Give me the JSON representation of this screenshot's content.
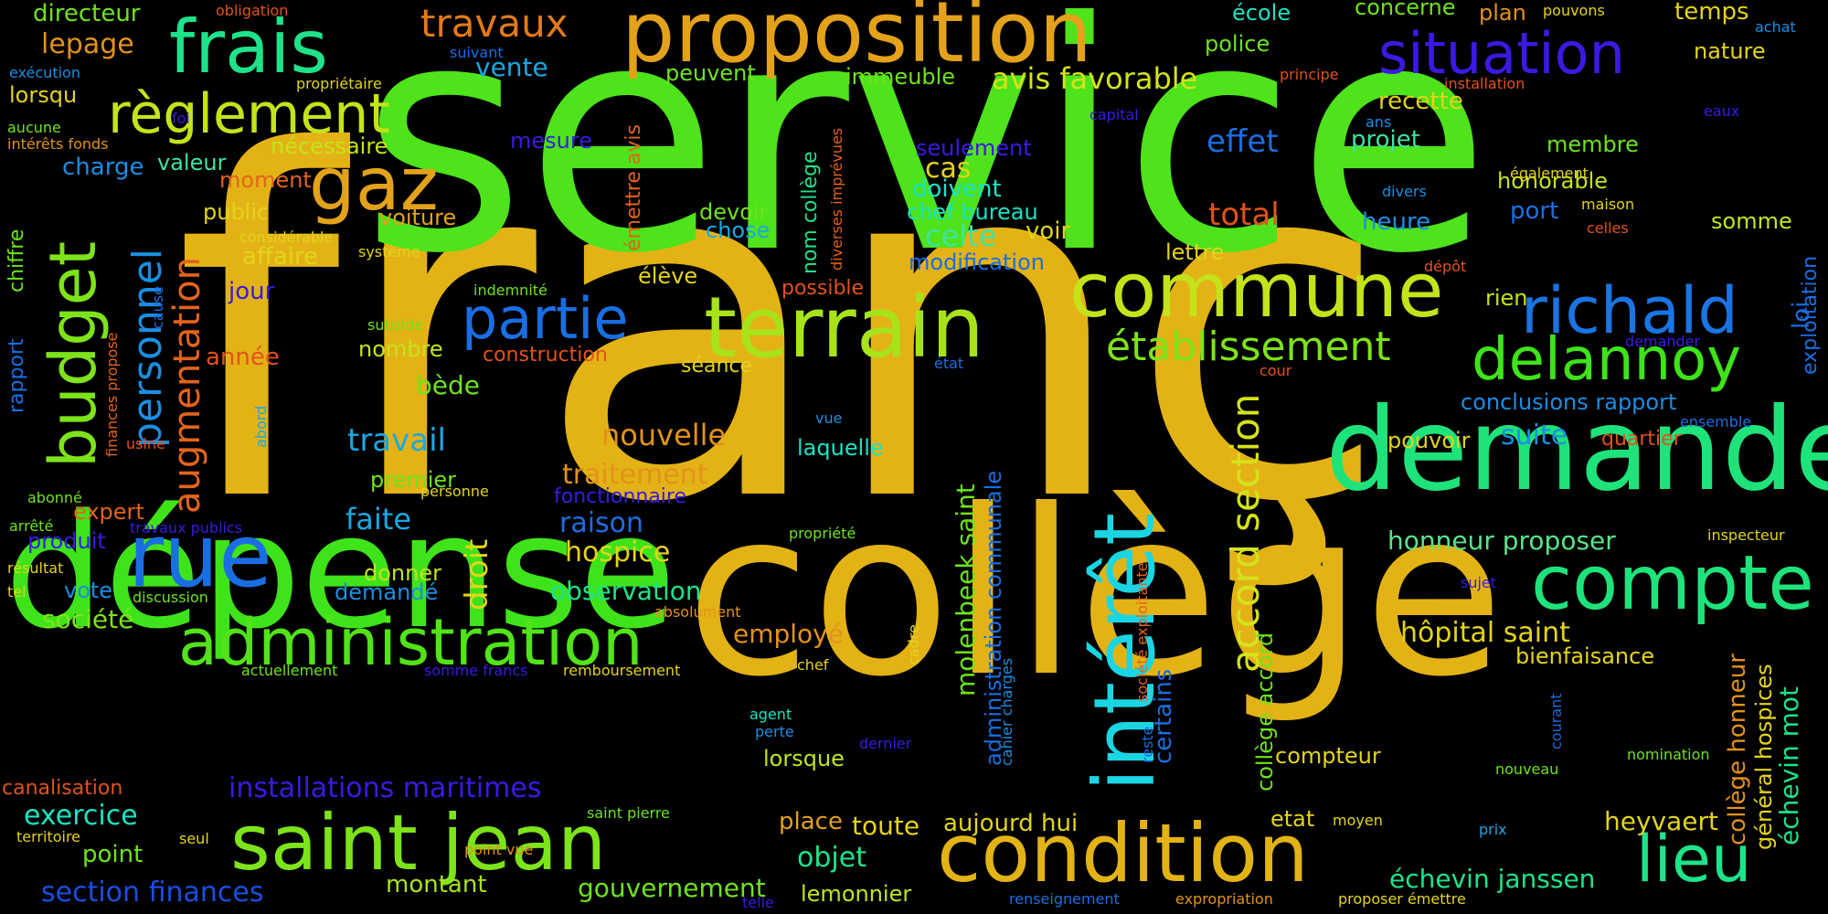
{
  "words": [
    {
      "text": "franç",
      "color": "#e3b316"
    },
    {
      "text": "service",
      "color": "#4ee31a"
    },
    {
      "text": "collège",
      "color": "#e3b316"
    },
    {
      "text": "dépense",
      "color": "#3fe31a"
    },
    {
      "text": "demande",
      "color": "#1ee37a"
    },
    {
      "text": "proposition",
      "color": "#e3a21a"
    },
    {
      "text": "commune",
      "color": "#c4e31a"
    },
    {
      "text": "terrain",
      "color": "#a8e31a"
    },
    {
      "text": "condition",
      "color": "#e3b316"
    },
    {
      "text": "compte",
      "color": "#1ee37a"
    },
    {
      "text": "saint jean",
      "color": "#7de31a"
    },
    {
      "text": "administration",
      "color": "#52e31a"
    },
    {
      "text": "intérêt",
      "color": "#1ad6e3"
    },
    {
      "text": "rue",
      "color": "#1a6ee3"
    },
    {
      "text": "frais",
      "color": "#1ee38a"
    },
    {
      "text": "situation",
      "color": "#3a1ae3"
    },
    {
      "text": "richald",
      "color": "#1a74e3"
    },
    {
      "text": "delannoy",
      "color": "#3fe31a"
    },
    {
      "text": "budget",
      "color": "#7de31a"
    },
    {
      "text": "règlement",
      "color": "#c4e31a"
    },
    {
      "text": "gaz",
      "color": "#e3a21a"
    },
    {
      "text": "partie",
      "color": "#1a6ee3"
    },
    {
      "text": "lieu",
      "color": "#1ee38a"
    },
    {
      "text": "établissement",
      "color": "#7de31a"
    },
    {
      "text": "personnel",
      "color": "#1a8ee3"
    },
    {
      "text": "augmentation",
      "color": "#e3641a"
    },
    {
      "text": "travaux",
      "color": "#e3791a"
    },
    {
      "text": "accord section",
      "color": "#d4e31a"
    },
    {
      "text": "installations maritimes",
      "color": "#3a1ae3"
    },
    {
      "text": "avis favorable",
      "color": "#d4e31a"
    },
    {
      "text": "hôpital saint",
      "color": "#e3d41a"
    },
    {
      "text": "honneur proposer",
      "color": "#5ae38a"
    },
    {
      "text": "section finances",
      "color": "#1a4ee3"
    },
    {
      "text": "gouvernement",
      "color": "#6ee31a"
    },
    {
      "text": "échevin janssen",
      "color": "#1ee38a"
    },
    {
      "text": "traitement",
      "color": "#e3921a"
    },
    {
      "text": "nouvelle",
      "color": "#e3921a"
    },
    {
      "text": "travail",
      "color": "#1aa8e3"
    },
    {
      "text": "hospice",
      "color": "#e3d41a"
    },
    {
      "text": "raison",
      "color": "#1a6ee3"
    },
    {
      "text": "observation",
      "color": "#1ee38a"
    },
    {
      "text": "employé",
      "color": "#e3921a"
    },
    {
      "text": "objet",
      "color": "#1ee38a"
    },
    {
      "text": "heyvaert",
      "color": "#e3d41a"
    },
    {
      "text": "exercice",
      "color": "#1ae3c4"
    },
    {
      "text": "point",
      "color": "#6ee31a"
    },
    {
      "text": "montant",
      "color": "#a8e31a"
    },
    {
      "text": "lemonnier",
      "color": "#c4e31a"
    },
    {
      "text": "toute",
      "color": "#e3d41a"
    },
    {
      "text": "aujourd hui",
      "color": "#e3d41a"
    },
    {
      "text": "place",
      "color": "#e3a21a"
    },
    {
      "text": "lorsque",
      "color": "#c4e31a"
    },
    {
      "text": "compteur",
      "color": "#e3d41a"
    },
    {
      "text": "etat",
      "color": "#e3d41a"
    },
    {
      "text": "effet",
      "color": "#1a6ee3"
    },
    {
      "text": "total",
      "color": "#e3521a"
    },
    {
      "text": "celte",
      "color": "#3fe3a0"
    },
    {
      "text": "cas",
      "color": "#e3d41a"
    },
    {
      "text": "doivent",
      "color": "#1ae3c4"
    },
    {
      "text": "chef bureau",
      "color": "#1ae3c4"
    },
    {
      "text": "modification",
      "color": "#1a6ee3"
    },
    {
      "text": "seulement",
      "color": "#3a1ae3"
    },
    {
      "text": "voir",
      "color": "#e3d41a"
    },
    {
      "text": "lettre",
      "color": "#e3d41a"
    },
    {
      "text": "projet",
      "color": "#3fe3a0"
    },
    {
      "text": "recette",
      "color": "#e3d41a"
    },
    {
      "text": "membre",
      "color": "#6ee31a"
    },
    {
      "text": "honorable",
      "color": "#c4e31a"
    },
    {
      "text": "heure",
      "color": "#1a8ee3"
    },
    {
      "text": "port",
      "color": "#1a6ee3"
    },
    {
      "text": "somme",
      "color": "#c4e31a"
    },
    {
      "text": "rien",
      "color": "#c4e31a"
    },
    {
      "text": "suite",
      "color": "#1a8ee3"
    },
    {
      "text": "quartier",
      "color": "#e3521a"
    },
    {
      "text": "pouvoir",
      "color": "#e3d41a"
    },
    {
      "text": "conclusions rapport",
      "color": "#1a8ee3"
    },
    {
      "text": "bienfaisance",
      "color": "#e3d41a"
    },
    {
      "text": "fonctionnaire",
      "color": "#3a1ae3"
    },
    {
      "text": "séance",
      "color": "#e3d41a"
    },
    {
      "text": "construction",
      "color": "#e3521a"
    },
    {
      "text": "laquelle",
      "color": "#1ae3c4"
    },
    {
      "text": "valeur",
      "color": "#3fe3a0"
    },
    {
      "text": "charge",
      "color": "#1a8ee3"
    },
    {
      "text": "moment",
      "color": "#e3641a"
    },
    {
      "text": "public",
      "color": "#e3d41a"
    },
    {
      "text": "voiture",
      "color": "#e3a21a"
    },
    {
      "text": "affaire",
      "color": "#e3d41a"
    },
    {
      "text": "nécessaire",
      "color": "#c4e31a"
    },
    {
      "text": "jour",
      "color": "#3a1ae3"
    },
    {
      "text": "année",
      "color": "#e3521a"
    },
    {
      "text": "bède",
      "color": "#6ee31a"
    },
    {
      "text": "nombre",
      "color": "#c4e31a"
    },
    {
      "text": "premier",
      "color": "#6ee31a"
    },
    {
      "text": "faite",
      "color": "#1aa8e3"
    },
    {
      "text": "droit",
      "color": "#e3d41a"
    },
    {
      "text": "donner",
      "color": "#c4e31a"
    },
    {
      "text": "demandé",
      "color": "#1a8ee3"
    },
    {
      "text": "expert",
      "color": "#e3641a"
    },
    {
      "text": "produit",
      "color": "#3a1ae3"
    },
    {
      "text": "vote",
      "color": "#1a8ee3"
    },
    {
      "text": "société",
      "color": "#7de31a"
    },
    {
      "text": "lepage",
      "color": "#e3921a"
    },
    {
      "text": "directeur",
      "color": "#6ee31a"
    },
    {
      "text": "lorsqu",
      "color": "#e3d41a"
    },
    {
      "text": "vente",
      "color": "#1aa8e3"
    },
    {
      "text": "mesure",
      "color": "#3a1ae3"
    },
    {
      "text": "peuvent",
      "color": "#6ee31a"
    },
    {
      "text": "immeuble",
      "color": "#6ee31a"
    },
    {
      "text": "police",
      "color": "#6ee31a"
    },
    {
      "text": "école",
      "color": "#1ae3c4"
    },
    {
      "text": "concerne",
      "color": "#6ee31a"
    },
    {
      "text": "plan",
      "color": "#e3921a"
    },
    {
      "text": "temps",
      "color": "#e3d41a"
    },
    {
      "text": "nature",
      "color": "#e3d41a"
    },
    {
      "text": "devoir",
      "color": "#6ee31a"
    },
    {
      "text": "chose",
      "color": "#1aa8e3"
    },
    {
      "text": "élève",
      "color": "#e3d41a"
    },
    {
      "text": "possible",
      "color": "#e3521a"
    },
    {
      "text": "molenbeek saint",
      "color": "#6ee31a"
    },
    {
      "text": "administration communale",
      "color": "#1a6ee3"
    },
    {
      "text": "certains",
      "color": "#1a6ee3"
    },
    {
      "text": "collège accord",
      "color": "#6ee31a"
    },
    {
      "text": "collège honneur",
      "color": "#e3921a"
    },
    {
      "text": "général hospices",
      "color": "#e3d41a"
    },
    {
      "text": "échevin mot",
      "color": "#1ee38a"
    },
    {
      "text": "loi",
      "color": "#1a6ee3"
    },
    {
      "text": "exploitation",
      "color": "#1a6ee3"
    },
    {
      "text": "nom collège",
      "color": "#1ee38a"
    },
    {
      "text": "émettre avis",
      "color": "#e3641a"
    },
    {
      "text": "diverses imprévues",
      "color": "#e3641a"
    },
    {
      "text": "chiffre",
      "color": "#6ee31a"
    },
    {
      "text": "rapport",
      "color": "#1a6ee3"
    },
    {
      "text": "finances propose",
      "color": "#e3641a"
    },
    {
      "text": "cause",
      "color": "#1a6ee3"
    },
    {
      "text": "abord",
      "color": "#1aa8e3"
    },
    {
      "text": "usine",
      "color": "#e3521a"
    },
    {
      "text": "reste",
      "color": "#1a6ee3"
    },
    {
      "text": "société exploitante",
      "color": "#e3641a"
    },
    {
      "text": "cahier charges",
      "color": "#1a8ee3"
    },
    {
      "text": "cadre",
      "color": "#e3d41a"
    },
    {
      "text": "courant",
      "color": "#1a6ee3"
    },
    {
      "text": "exécution",
      "color": "#1a8ee3"
    },
    {
      "text": "aucune",
      "color": "#6ee31a"
    },
    {
      "text": "intérêts fonds",
      "color": "#e3921a"
    },
    {
      "text": "obligation",
      "color": "#e3521a"
    },
    {
      "text": "propriétaire",
      "color": "#e3d41a"
    },
    {
      "text": "suivant",
      "color": "#1a6ee3"
    },
    {
      "text": "foi",
      "color": "#3a1ae3"
    },
    {
      "text": "considérable",
      "color": "#e3d41a"
    },
    {
      "text": "système",
      "color": "#e3d41a"
    },
    {
      "text": "indemnité",
      "color": "#6ee31a"
    },
    {
      "text": "subside",
      "color": "#6ee31a"
    },
    {
      "text": "personne",
      "color": "#e3d41a"
    },
    {
      "text": "abonné",
      "color": "#6ee31a"
    },
    {
      "text": "arrêté",
      "color": "#6ee31a"
    },
    {
      "text": "résultat",
      "color": "#e3d41a"
    },
    {
      "text": "tel",
      "color": "#e3d41a"
    },
    {
      "text": "discussion",
      "color": "#6ee31a"
    },
    {
      "text": "travaux publics",
      "color": "#3a1ae3"
    },
    {
      "text": "propriété",
      "color": "#6ee31a"
    },
    {
      "text": "absolument",
      "color": "#e3921a"
    },
    {
      "text": "actuellement",
      "color": "#6ee31a"
    },
    {
      "text": "somme francs",
      "color": "#3a1ae3"
    },
    {
      "text": "remboursement",
      "color": "#e3d41a"
    },
    {
      "text": "chef",
      "color": "#e3d41a"
    },
    {
      "text": "agent",
      "color": "#1ae3c4"
    },
    {
      "text": "perte",
      "color": "#1a8ee3"
    },
    {
      "text": "dernier",
      "color": "#3a1ae3"
    },
    {
      "text": "vue",
      "color": "#1a8ee3"
    },
    {
      "text": "état",
      "color": "#1a6ee3"
    },
    {
      "text": "cour",
      "color": "#e3521a"
    },
    {
      "text": "demander",
      "color": "#3a1ae3"
    },
    {
      "text": "ensemble",
      "color": "#1a6ee3"
    },
    {
      "text": "inspecteur",
      "color": "#e3d41a"
    },
    {
      "text": "sujet",
      "color": "#3a1ae3"
    },
    {
      "text": "nomination",
      "color": "#6ee31a"
    },
    {
      "text": "nouveau",
      "color": "#6ee31a"
    },
    {
      "text": "prix",
      "color": "#1aa8e3"
    },
    {
      "text": "moyen",
      "color": "#e3d41a"
    },
    {
      "text": "renseignement",
      "color": "#1a6ee3"
    },
    {
      "text": "expropriation",
      "color": "#e3921a"
    },
    {
      "text": "proposer émettre",
      "color": "#e3d41a"
    },
    {
      "text": "telle",
      "color": "#3a1ae3"
    },
    {
      "text": "saint pierre",
      "color": "#6ee31a"
    },
    {
      "text": "point vue",
      "color": "#e3921a"
    },
    {
      "text": "seul",
      "color": "#e3d41a"
    },
    {
      "text": "territoire",
      "color": "#e3d41a"
    },
    {
      "text": "canalisation",
      "color": "#e3521a"
    },
    {
      "text": "capital",
      "color": "#3a1ae3"
    },
    {
      "text": "ans",
      "color": "#1a8ee3"
    },
    {
      "text": "divers",
      "color": "#1a8ee3"
    },
    {
      "text": "également",
      "color": "#e3d41a"
    },
    {
      "text": "eaux",
      "color": "#3a1ae3"
    },
    {
      "text": "maison",
      "color": "#e3d41a"
    },
    {
      "text": "celles",
      "color": "#e3521a"
    },
    {
      "text": "dépôt",
      "color": "#e3521a"
    },
    {
      "text": "principe",
      "color": "#e3521a"
    },
    {
      "text": "installation",
      "color": "#e3521a"
    },
    {
      "text": "achat",
      "color": "#1a8ee3"
    },
    {
      "text": "pouvons",
      "color": "#e3d41a"
    }
  ]
}
